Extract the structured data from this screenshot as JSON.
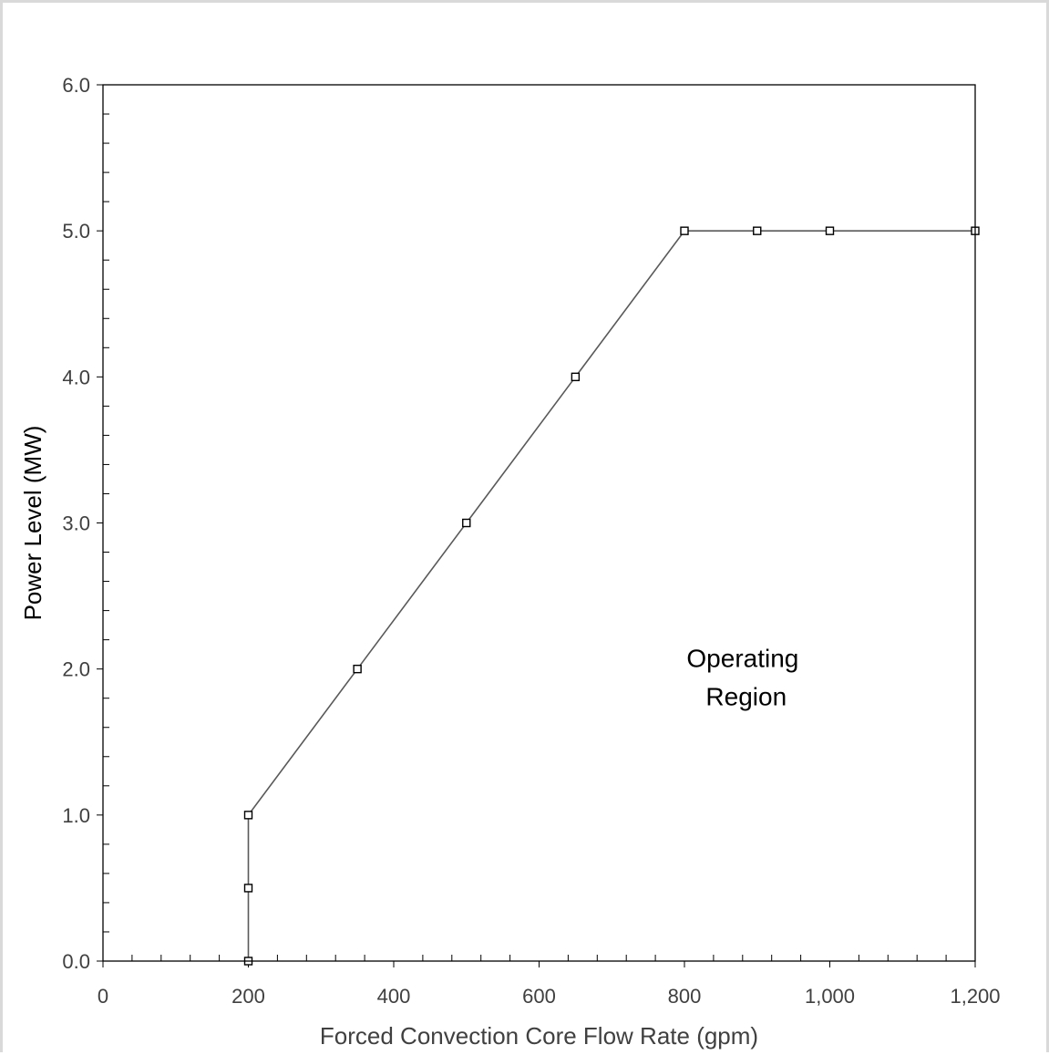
{
  "chart_data": {
    "type": "line",
    "title": "",
    "xlabel": "Forced Convection Core Flow Rate (gpm)",
    "ylabel": "Power Level (MW)",
    "xlim": [
      0,
      1200
    ],
    "ylim": [
      0,
      6
    ],
    "x_ticks": [
      0,
      200,
      400,
      600,
      800,
      1000,
      1200
    ],
    "x_tick_labels": [
      "0",
      "200",
      "400",
      "600",
      "800",
      "1,000",
      "1,200"
    ],
    "y_ticks": [
      0,
      1,
      2,
      3,
      4,
      5,
      6
    ],
    "y_tick_labels": [
      "0.0",
      "1.0",
      "2.0",
      "3.0",
      "4.0",
      "5.0",
      "6.0"
    ],
    "grid": false,
    "series": [
      {
        "x": [
          200,
          200,
          200,
          350,
          500,
          650,
          800,
          900,
          1000,
          1200
        ],
        "y": [
          0,
          0.5,
          1,
          2,
          3,
          4,
          5,
          5,
          5,
          5
        ]
      }
    ],
    "annotations": [
      {
        "lines": [
          "Operating",
          "Region"
        ],
        "x": 885,
        "y": 1.9
      }
    ],
    "colors": {
      "line": "#595959",
      "marker": "#000000",
      "axis": "#000000"
    }
  }
}
